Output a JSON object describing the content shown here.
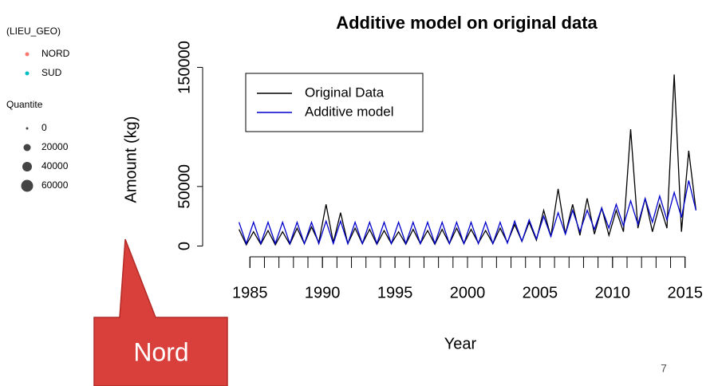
{
  "chart_data": {
    "type": "line",
    "title": "Additive model on original data",
    "xlabel": "Year",
    "ylabel": "Amount (kg)",
    "x": [
      1984.25,
      1984.75,
      1985.25,
      1985.75,
      1986.25,
      1986.75,
      1987.25,
      1987.75,
      1988.25,
      1988.75,
      1989.25,
      1989.75,
      1990.25,
      1990.75,
      1991.25,
      1991.75,
      1992.25,
      1992.75,
      1993.25,
      1993.75,
      1994.25,
      1994.75,
      1995.25,
      1995.75,
      1996.25,
      1996.75,
      1997.25,
      1997.75,
      1998.25,
      1998.75,
      1999.25,
      1999.75,
      2000.25,
      2000.75,
      2001.25,
      2001.75,
      2002.25,
      2002.75,
      2003.25,
      2003.75,
      2004.25,
      2004.75,
      2005.25,
      2005.75,
      2006.25,
      2006.75,
      2007.25,
      2007.75,
      2008.25,
      2008.75,
      2009.25,
      2009.75,
      2010.25,
      2010.75,
      2011.25,
      2011.75,
      2012.25,
      2012.75,
      2013.25,
      2013.75,
      2014.25,
      2014.75,
      2015.25,
      2015.75
    ],
    "series": [
      {
        "name": "Original Data",
        "color": "#000000",
        "values": [
          14000,
          1000,
          12000,
          1500,
          13000,
          1000,
          12000,
          1500,
          15000,
          2000,
          16000,
          3000,
          35000,
          3000,
          28000,
          2000,
          15000,
          2000,
          14000,
          1500,
          13000,
          2000,
          12000,
          1500,
          14000,
          2000,
          13000,
          1500,
          14000,
          2000,
          15000,
          2000,
          14000,
          2500,
          13000,
          2000,
          15000,
          3000,
          18000,
          4000,
          20000,
          5000,
          30000,
          8000,
          48000,
          10000,
          35000,
          9000,
          40000,
          10000,
          32000,
          9000,
          30000,
          12000,
          98000,
          15000,
          40000,
          12000,
          35000,
          15000,
          144000,
          12000,
          80000,
          30000
        ]
      },
      {
        "name": "Additive model",
        "color": "#0000cc",
        "values": [
          20000,
          2000,
          20000,
          2000,
          20000,
          2000,
          20000,
          2000,
          20000,
          2000,
          20000,
          2000,
          21000,
          2000,
          21000,
          2000,
          20000,
          2000,
          20000,
          2000,
          20000,
          2000,
          20000,
          2000,
          20000,
          2000,
          20000,
          2000,
          20000,
          2000,
          20000,
          2000,
          20000,
          2000,
          20000,
          2000,
          20000,
          2500,
          21000,
          4000,
          22000,
          6000,
          25000,
          8000,
          28000,
          10000,
          30000,
          12000,
          30000,
          14000,
          32000,
          15000,
          35000,
          17000,
          38000,
          18000,
          40000,
          20000,
          42000,
          22000,
          45000,
          24000,
          55000,
          30000
        ]
      }
    ],
    "xlim": [
      1983.5,
      2016.5
    ],
    "ylim": [
      -5000,
      155000
    ],
    "xticks": [
      1985,
      1990,
      1995,
      2000,
      2005,
      2010,
      2015
    ],
    "x_minor_ticks": [
      1985,
      1986,
      1987,
      1988,
      1989,
      1990,
      1991,
      1992,
      1993,
      1994,
      1995,
      1996,
      1997,
      1998,
      1999,
      2000,
      2001,
      2002,
      2003,
      2004,
      2005,
      2006,
      2007,
      2008,
      2009,
      2010,
      2011,
      2012,
      2013,
      2014,
      2015
    ],
    "yticks": [
      0,
      50000,
      150000
    ],
    "legend": "topleft"
  },
  "side_legend": {
    "title": "(LIEU_GEO)",
    "items": [
      {
        "label": "NORD",
        "color": "#f8766d"
      },
      {
        "label": "SUD",
        "color": "#00bfc4"
      }
    ],
    "size_title": "Quantite",
    "sizes": [
      "0",
      "20000",
      "40000",
      "60000"
    ]
  },
  "callout": "Nord",
  "page_number": "7"
}
